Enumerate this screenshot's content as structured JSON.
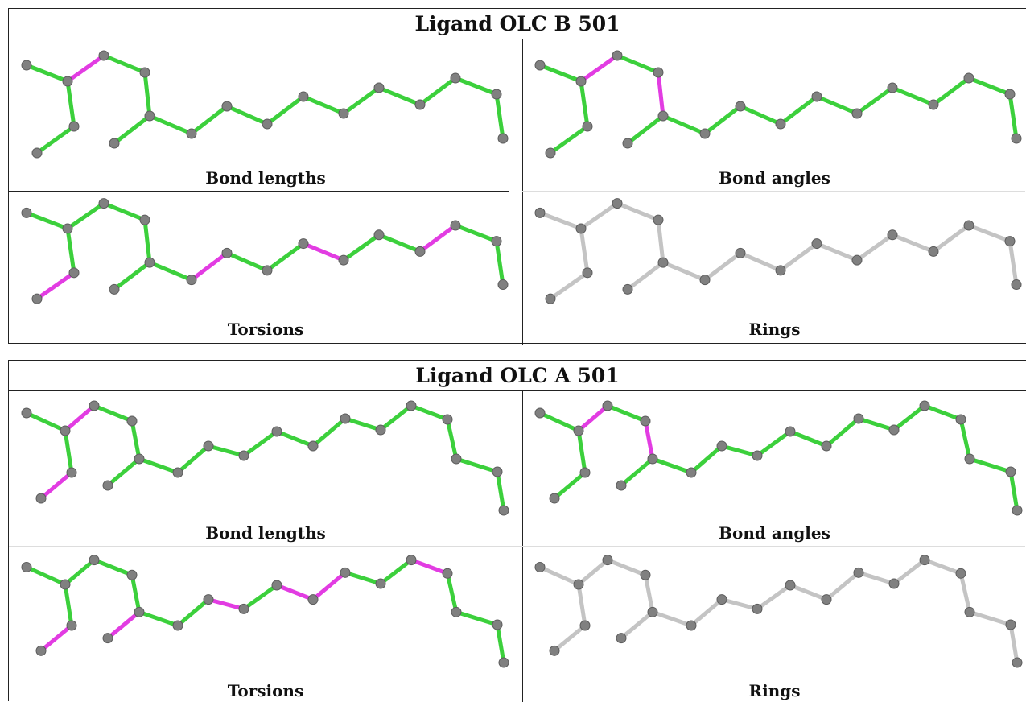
{
  "tables": [
    {
      "id": "B",
      "title": "Ligand OLC B 501",
      "panels": [
        {
          "caption": "Bond lengths",
          "highlight": [
            3
          ]
        },
        {
          "caption": "Bond angles",
          "highlight": [
            3,
            5
          ]
        },
        {
          "caption": "Torsions",
          "highlight": [
            2,
            8,
            11,
            14
          ]
        },
        {
          "caption": "Rings",
          "highlight": []
        }
      ]
    },
    {
      "id": "A",
      "title": "Ligand OLC A 501",
      "panels": [
        {
          "caption": "Bond lengths",
          "highlight": [
            2,
            3
          ]
        },
        {
          "caption": "Bond angles",
          "highlight": [
            3,
            5
          ]
        },
        {
          "caption": "Torsions",
          "highlight": [
            2,
            6,
            9,
            11,
            12,
            15
          ]
        },
        {
          "caption": "Rings",
          "highlight": []
        }
      ]
    }
  ],
  "colors": {
    "bond": "#3cd03c",
    "highlight": "#e23ce2",
    "rings_bond": "#c4c4c4",
    "atom": "#808080",
    "border": "#222222"
  }
}
